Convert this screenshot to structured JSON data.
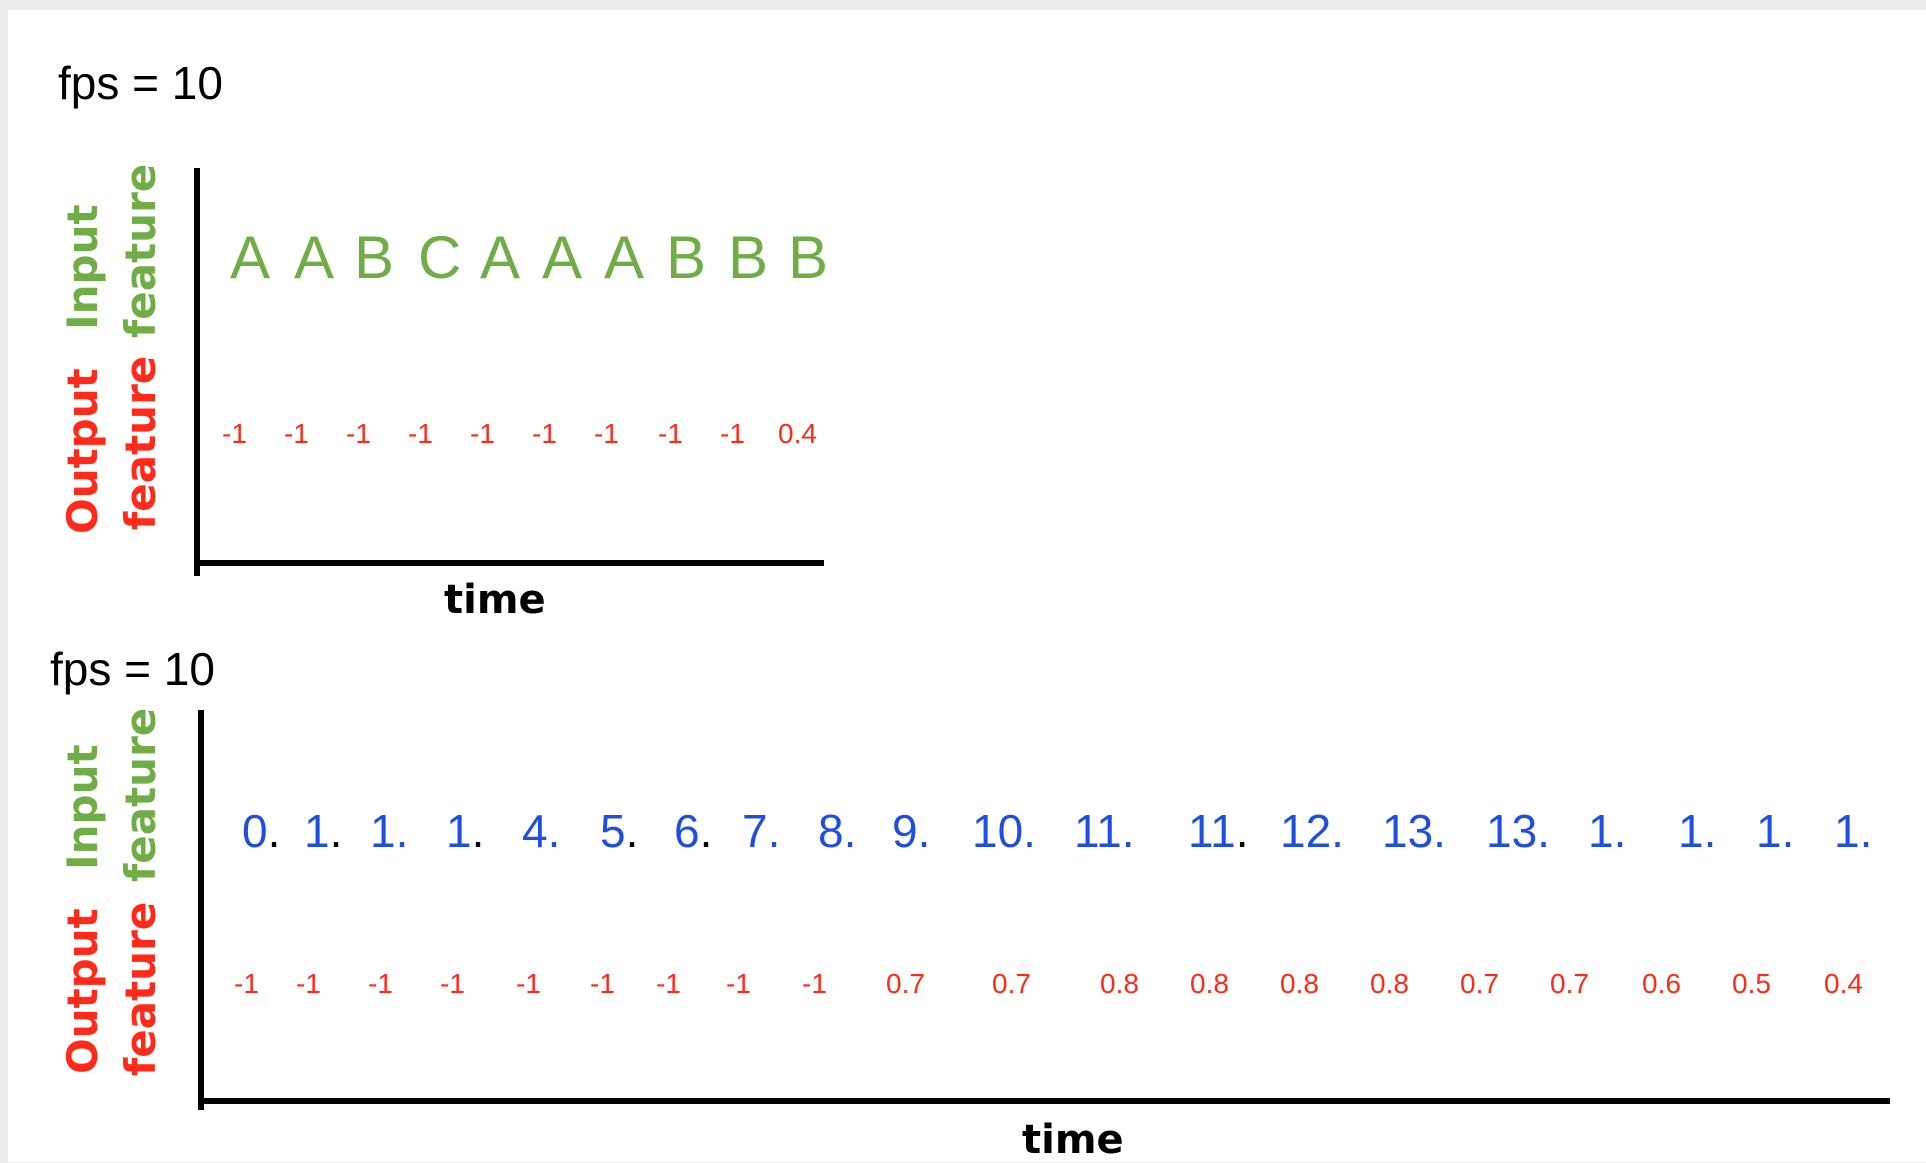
{
  "colors": {
    "input_feature": "#70ad47",
    "output_feature": "#ff2a1a",
    "numeric_input": "#1f4ee0",
    "axis": "#000000"
  },
  "panel_top": {
    "fps_label": "fps = 10",
    "y_label_input": [
      "Input",
      "feature"
    ],
    "y_label_output": [
      "Output",
      "feature"
    ],
    "x_label": "time",
    "input_letters": [
      "A",
      "A",
      "B",
      "C",
      "A",
      "A",
      "A",
      "B",
      "B",
      "B"
    ],
    "output_values": [
      "-1",
      "-1",
      "-1",
      "-1",
      "-1",
      "-1",
      "-1",
      "-1",
      "-1",
      "0.4"
    ]
  },
  "panel_bottom": {
    "fps_label": "fps = 10",
    "y_label_input": [
      "Input",
      "feature"
    ],
    "y_label_output": [
      "Output",
      "feature"
    ],
    "x_label": "time",
    "input_numbers": [
      {
        "num": "0",
        "dot": ".",
        "dot_black": true
      },
      {
        "num": "1",
        "dot": ".",
        "dot_black": true
      },
      {
        "num": "1",
        "dot": ".",
        "dot_black": false
      },
      {
        "num": "1",
        "dot": ".",
        "dot_black": true
      },
      {
        "num": "4",
        "dot": ".",
        "dot_black": false
      },
      {
        "num": "5",
        "dot": ".",
        "dot_black": true
      },
      {
        "num": "6",
        "dot": ".",
        "dot_black": true
      },
      {
        "num": "7",
        "dot": ".",
        "dot_black": false
      },
      {
        "num": "8",
        "dot": ".",
        "dot_black": false
      },
      {
        "num": "9",
        "dot": ".",
        "dot_black": false
      },
      {
        "num": "10",
        "dot": ".",
        "dot_black": false
      },
      {
        "num": "11",
        "dot": ".",
        "dot_black": false
      },
      {
        "num": "11",
        "dot": ".",
        "dot_black": true
      },
      {
        "num": "12",
        "dot": ".",
        "dot_black": false
      },
      {
        "num": "13",
        "dot": ".",
        "dot_black": false
      },
      {
        "num": "13",
        "dot": ".",
        "dot_black": false
      },
      {
        "num": "1",
        "dot": ".",
        "dot_black": false
      },
      {
        "num": "1",
        "dot": ".",
        "dot_black": false
      },
      {
        "num": "1",
        "dot": ".",
        "dot_black": false
      },
      {
        "num": "1",
        "dot": ".",
        "dot_black": false
      }
    ],
    "output_values": [
      "-1",
      "-1",
      "-1",
      "-1",
      "-1",
      "-1",
      "-1",
      "-1",
      "-1",
      "0.7",
      "0.7",
      "0.8",
      "0.8",
      "0.8",
      "0.8",
      "0.7",
      "0.7",
      "0.6",
      "0.5",
      "0.4"
    ]
  }
}
